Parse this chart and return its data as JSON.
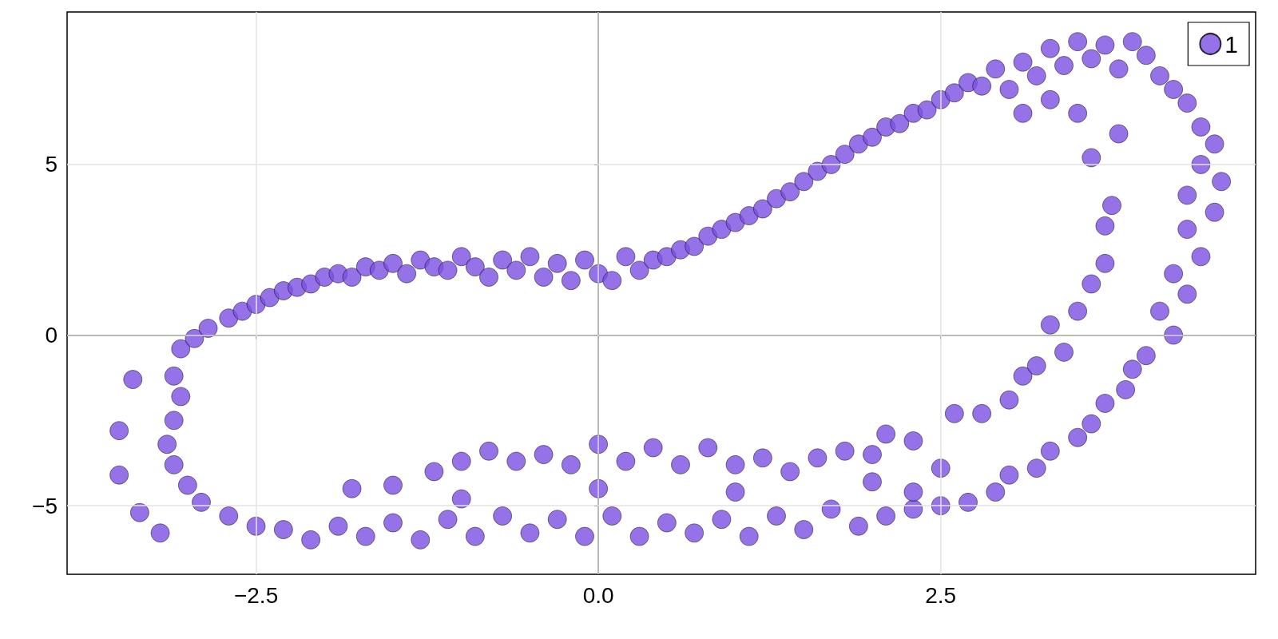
{
  "chart_data": {
    "type": "scatter",
    "marker": "circle",
    "grid": true,
    "legend": "top right",
    "xlim": [
      -3.88,
      4.8
    ],
    "ylim": [
      -7.01,
      9.47
    ],
    "xticks": [
      {
        "value": -2.5,
        "label": "−2.5"
      },
      {
        "value": 0,
        "label": "0.0"
      },
      {
        "value": 2.5,
        "label": "2.5"
      }
    ],
    "yticks": [
      {
        "value": -5,
        "label": "−5"
      },
      0,
      5
    ],
    "series": [
      {
        "name": "1",
        "color": "#7a4fe2",
        "x": [
          -3.05,
          -2.95,
          -2.85,
          -2.7,
          -2.6,
          -2.5,
          -2.4,
          -2.3,
          -2.2,
          -2.1,
          -2.0,
          -1.9,
          -1.8,
          -1.7,
          -1.6,
          -1.5,
          -1.4,
          -1.3,
          -1.2,
          -1.1,
          -1.0,
          -0.9,
          -0.8,
          -0.7,
          -0.6,
          -0.5,
          -0.4,
          -0.3,
          -0.2,
          -0.1,
          0,
          0.1,
          0.2,
          0.3,
          0.4,
          0.5,
          0.6,
          0.7,
          0.8,
          0.9,
          1.0,
          1.1,
          1.2,
          1.3,
          1.4,
          1.5,
          1.6,
          1.7,
          1.8,
          1.9,
          2.0,
          2.1,
          2.2,
          2.3,
          2.4,
          2.5,
          2.6,
          2.7,
          2.8,
          2.9,
          3.0,
          3.1,
          3.2,
          3.3,
          3.4,
          3.5,
          3.6,
          3.7,
          3.8,
          3.9,
          4.0,
          4.1,
          4.2,
          4.3,
          4.4,
          4.5,
          4.4,
          4.55,
          4.3,
          4.5,
          4.3,
          4.4,
          4.2,
          4.3,
          4.1,
          4.2,
          4.0,
          3.9,
          3.85,
          3.7,
          3.6,
          3.5,
          3.3,
          3.2,
          3.0,
          2.9,
          2.7,
          2.5,
          2.3,
          2.1,
          1.9,
          1.7,
          1.5,
          1.3,
          1.1,
          0.9,
          0.7,
          0.5,
          0.3,
          0.1,
          -0.1,
          -0.3,
          -0.5,
          -0.7,
          -0.9,
          -1.1,
          -1.3,
          -1.5,
          -1.7,
          -1.9,
          -2.1,
          -2.3,
          -2.5,
          -2.7,
          -2.9,
          -3.0,
          -3.1,
          -3.15,
          -3.1,
          -3.05,
          -3.1,
          -3.5,
          -3.5,
          -3.4,
          -3.35,
          -3.2,
          -1.8,
          -1.5,
          -1.2,
          -1.0,
          -0.8,
          -0.6,
          -0.4,
          -0.2,
          0,
          0.2,
          0.4,
          0.6,
          0.8,
          1.0,
          1.2,
          1.4,
          1.6,
          1.8,
          2.0,
          2.1,
          2.3,
          2.5,
          2.6,
          2.8,
          3.0,
          3.1,
          3.2,
          3.3,
          3.4,
          3.5,
          3.6,
          3.7,
          3.7,
          3.75,
          3.6,
          3.8,
          3.5,
          3.3,
          3.1,
          -1.0,
          0,
          1.0,
          2.0,
          2.3
        ],
        "values": [
          -0.4,
          -0.1,
          0.2,
          0.5,
          0.7,
          0.9,
          1.1,
          1.3,
          1.4,
          1.5,
          1.7,
          1.8,
          1.7,
          2.0,
          1.9,
          2.1,
          1.8,
          2.2,
          2.0,
          1.9,
          2.3,
          2.0,
          1.7,
          2.2,
          1.9,
          2.3,
          1.7,
          2.1,
          1.6,
          2.2,
          1.8,
          1.6,
          2.3,
          1.9,
          2.2,
          2.3,
          2.5,
          2.6,
          2.9,
          3.1,
          3.3,
          3.5,
          3.7,
          4.0,
          4.2,
          4.5,
          4.8,
          5.0,
          5.3,
          5.6,
          5.8,
          6.1,
          6.2,
          6.5,
          6.6,
          6.9,
          7.1,
          7.4,
          7.3,
          7.8,
          7.2,
          8.0,
          7.6,
          8.4,
          7.9,
          8.6,
          8.1,
          8.5,
          7.8,
          8.6,
          8.2,
          7.6,
          7.2,
          6.8,
          6.1,
          5.6,
          5.0,
          4.5,
          4.1,
          3.6,
          3.1,
          2.3,
          1.8,
          1.2,
          0.7,
          0.0,
          -0.6,
          -1.0,
          -1.6,
          -2.0,
          -2.6,
          -3.0,
          -3.4,
          -3.9,
          -4.1,
          -4.6,
          -4.9,
          -5.0,
          -5.1,
          -5.3,
          -5.6,
          -5.1,
          -5.7,
          -5.3,
          -5.9,
          -5.4,
          -5.8,
          -5.5,
          -5.9,
          -5.3,
          -5.9,
          -5.4,
          -5.8,
          -5.3,
          -5.9,
          -5.4,
          -6.0,
          -5.5,
          -5.9,
          -5.6,
          -6.0,
          -5.7,
          -5.6,
          -5.3,
          -4.9,
          -4.4,
          -3.8,
          -3.2,
          -2.5,
          -1.8,
          -1.2,
          -2.8,
          -4.1,
          -1.3,
          -5.2,
          -5.8,
          -4.5,
          -4.4,
          -4.0,
          -3.7,
          -3.4,
          -3.7,
          -3.5,
          -3.8,
          -3.2,
          -3.7,
          -3.3,
          -3.8,
          -3.3,
          -3.8,
          -3.6,
          -4.0,
          -3.6,
          -3.4,
          -3.5,
          -2.9,
          -3.1,
          -3.9,
          -2.3,
          -2.3,
          -1.9,
          -1.2,
          -0.9,
          0.3,
          -0.5,
          0.7,
          1.5,
          2.1,
          3.2,
          3.8,
          5.2,
          5.9,
          6.5,
          6.9,
          6.5,
          -4.8,
          -4.5,
          -4.6,
          -4.3,
          -4.6
        ]
      }
    ]
  }
}
